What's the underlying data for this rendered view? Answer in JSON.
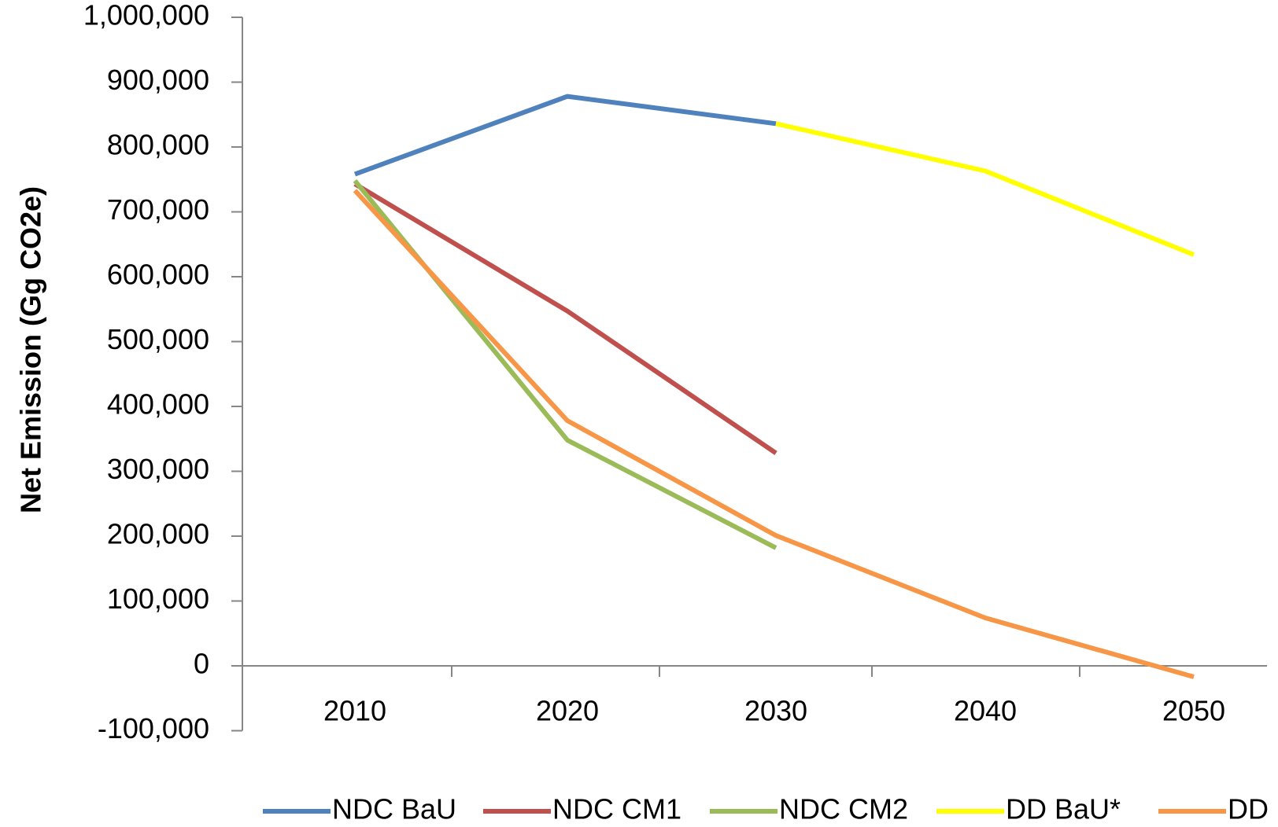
{
  "chart_data": {
    "type": "line",
    "title": "",
    "xlabel": "",
    "ylabel": "Net Emission (Gg CO2e)",
    "categories": [
      "2010",
      "2020",
      "2030",
      "2040",
      "2050"
    ],
    "y_tick_labels": [
      "-100,000",
      "0",
      "100,000",
      "200,000",
      "300,000",
      "400,000",
      "500,000",
      "600,000",
      "700,000",
      "800,000",
      "900,000",
      "1,000,000"
    ],
    "ylim": [
      -100000,
      1000000
    ],
    "grid": false,
    "legend_position": "bottom",
    "series": [
      {
        "name": "NDC BaU",
        "color": "#4F81BD",
        "values": [
          758000,
          878000,
          836000,
          null,
          null
        ]
      },
      {
        "name": "NDC CM1",
        "color": "#C0504D",
        "values": [
          743000,
          547000,
          328000,
          null,
          null
        ]
      },
      {
        "name": "NDC CM2",
        "color": "#9BBB59",
        "values": [
          748000,
          348000,
          182000,
          null,
          null
        ]
      },
      {
        "name": "DD BaU*",
        "color": "#FFFF00",
        "values": [
          null,
          null,
          836000,
          763000,
          634000
        ]
      },
      {
        "name": "DD",
        "color": "#F79646",
        "values": [
          733000,
          378000,
          201000,
          74000,
          -17000
        ]
      }
    ]
  }
}
